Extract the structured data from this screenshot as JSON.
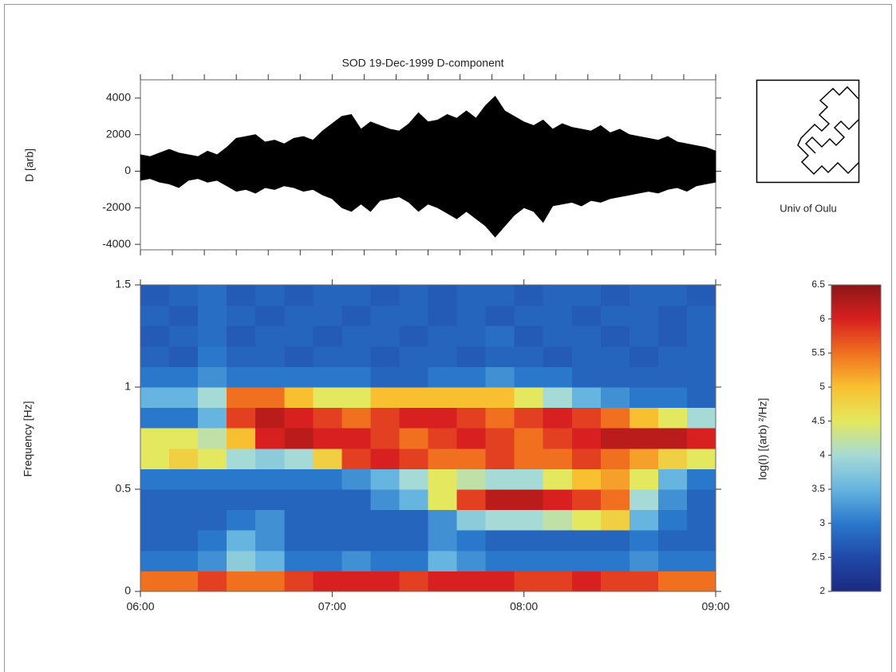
{
  "chart_data": [
    {
      "type": "range",
      "title": "SOD  19-Dec-1999  D-component",
      "ylabel": "D [arb]",
      "x": [
        360,
        363,
        366,
        369,
        372,
        375,
        378,
        381,
        384,
        387,
        390,
        393,
        396,
        399,
        402,
        405,
        408,
        411,
        414,
        417,
        420,
        423,
        426,
        429,
        432,
        435,
        438,
        441,
        444,
        447,
        450,
        453,
        456,
        459,
        462,
        465,
        468,
        471,
        474,
        477,
        480,
        483,
        486,
        489,
        492,
        495,
        498,
        501,
        504,
        507,
        510,
        513,
        516,
        519,
        522,
        525,
        528,
        531,
        534,
        537,
        540
      ],
      "upper": [
        900,
        800,
        1000,
        1200,
        1000,
        900,
        800,
        1100,
        900,
        1300,
        1800,
        1900,
        2000,
        1600,
        1700,
        1500,
        1800,
        1900,
        1700,
        2200,
        2600,
        3000,
        3100,
        2300,
        2700,
        2500,
        2300,
        2200,
        2600,
        3200,
        2700,
        2800,
        3100,
        2900,
        3300,
        2900,
        3600,
        4100,
        3300,
        3000,
        2700,
        2500,
        2800,
        2300,
        2600,
        2400,
        2300,
        2200,
        2500,
        2100,
        2300,
        2000,
        1900,
        1800,
        1700,
        1900,
        1600,
        1500,
        1400,
        1300,
        1100
      ],
      "lower": [
        -500,
        -400,
        -600,
        -700,
        -900,
        -500,
        -400,
        -600,
        -500,
        -800,
        -1100,
        -1000,
        -1200,
        -900,
        -1000,
        -800,
        -900,
        -1100,
        -1000,
        -1300,
        -1500,
        -2000,
        -2200,
        -1800,
        -2200,
        -1600,
        -1500,
        -1400,
        -1700,
        -2200,
        -1800,
        -2000,
        -2300,
        -2600,
        -2200,
        -2600,
        -3000,
        -3600,
        -3000,
        -2400,
        -2000,
        -2200,
        -2800,
        -1900,
        -1800,
        -1700,
        -1900,
        -1600,
        -1700,
        -1500,
        -1400,
        -1300,
        -1200,
        -1100,
        -1200,
        -1000,
        -900,
        -1100,
        -800,
        -700,
        -600
      ],
      "color": "#000000",
      "xlim": [
        360,
        540
      ],
      "xticks": [
        360,
        370,
        380,
        390,
        400,
        410,
        420,
        430,
        440,
        450,
        460,
        470,
        480,
        490,
        500,
        510,
        520,
        530,
        540
      ],
      "ylim": [
        -4300,
        5000
      ],
      "yticks": [
        4000,
        2000,
        0,
        -2000,
        -4000
      ]
    },
    {
      "type": "heatmap",
      "ylabel": "Frequency [Hz]",
      "xbins": [
        360,
        369,
        378,
        387,
        396,
        405,
        414,
        423,
        432,
        441,
        450,
        459,
        468,
        477,
        486,
        495,
        504,
        513,
        522,
        531,
        540
      ],
      "ybins": [
        0,
        0.1,
        0.2,
        0.3,
        0.4,
        0.5,
        0.6,
        0.7,
        0.8,
        0.9,
        1,
        1.1,
        1.2,
        1.3,
        1.4,
        1.5
      ],
      "values": [
        [
          5.5,
          5.5,
          5.8,
          5.5,
          5.5,
          5.8,
          6,
          6,
          6,
          5.8,
          6,
          6,
          6,
          5.8,
          5.8,
          6,
          5.8,
          5.8,
          5.5,
          5.5
        ],
        [
          3,
          3,
          3.2,
          3.8,
          3.5,
          3,
          3,
          3.2,
          3,
          3,
          3.5,
          3.2,
          3,
          3,
          3,
          3,
          3,
          3.2,
          3,
          3
        ],
        [
          2.8,
          2.8,
          3,
          3.5,
          3.2,
          2.8,
          2.8,
          2.8,
          2.8,
          2.8,
          3.2,
          3,
          2.8,
          2.8,
          2.8,
          2.8,
          2.8,
          3,
          2.8,
          2.8
        ],
        [
          2.8,
          2.8,
          2.8,
          3,
          3.2,
          2.8,
          2.8,
          2.8,
          2.8,
          2.8,
          3.2,
          3.8,
          4,
          4,
          4.2,
          4.5,
          4.8,
          3.5,
          3,
          2.8
        ],
        [
          2.8,
          2.8,
          2.8,
          2.8,
          2.8,
          2.8,
          2.8,
          2.8,
          3.2,
          3.5,
          4.5,
          5.8,
          6.2,
          6.2,
          6,
          5.8,
          5.5,
          4,
          3.2,
          2.8
        ],
        [
          3,
          3,
          3,
          3,
          3,
          3,
          3,
          3.2,
          3.5,
          4,
          4.5,
          4.2,
          4,
          4,
          4.5,
          5,
          5.2,
          4.5,
          3.5,
          3
        ],
        [
          4.5,
          4.8,
          4.5,
          4,
          3.8,
          4,
          4.8,
          5.8,
          6,
          5.8,
          5.5,
          5.5,
          5.8,
          5.5,
          5.5,
          5.8,
          5.5,
          5.2,
          4.8,
          4.5
        ],
        [
          4.5,
          4.5,
          4.2,
          5,
          6,
          6.2,
          6,
          6,
          5.8,
          5.5,
          5.8,
          6,
          5.8,
          5.5,
          5.8,
          6,
          6.2,
          6.2,
          6.2,
          6
        ],
        [
          3,
          3,
          3.5,
          5.8,
          6.2,
          6,
          5.8,
          5.5,
          5.8,
          6,
          6,
          5.8,
          5.5,
          5.8,
          6,
          5.8,
          5.5,
          5,
          4.5,
          4
        ],
        [
          3.5,
          3.5,
          4,
          5.5,
          5.5,
          5,
          4.5,
          4.5,
          5,
          5,
          5,
          5,
          5,
          4.5,
          4,
          3.5,
          3.2,
          3,
          3,
          2.8
        ],
        [
          3,
          3,
          3.2,
          3,
          3,
          3,
          3,
          3,
          2.8,
          2.8,
          3,
          3,
          3.2,
          3,
          3,
          2.8,
          2.8,
          2.8,
          2.8,
          2.8
        ],
        [
          2.8,
          2.7,
          3,
          2.8,
          2.8,
          2.7,
          2.8,
          2.8,
          2.7,
          2.8,
          2.8,
          2.7,
          2.8,
          2.8,
          2.7,
          2.8,
          2.8,
          2.7,
          2.8,
          2.8
        ],
        [
          2.7,
          2.8,
          2.9,
          2.7,
          2.8,
          2.8,
          2.7,
          2.8,
          2.8,
          2.7,
          2.8,
          2.8,
          2.9,
          2.7,
          2.8,
          2.8,
          2.7,
          2.8,
          2.7,
          2.8
        ],
        [
          2.8,
          2.7,
          2.9,
          2.8,
          2.7,
          2.8,
          2.8,
          2.7,
          2.8,
          2.8,
          2.7,
          2.8,
          2.7,
          2.8,
          2.8,
          2.7,
          2.8,
          2.8,
          2.7,
          2.8
        ],
        [
          2.7,
          2.8,
          2.9,
          2.7,
          2.8,
          2.7,
          2.8,
          2.8,
          2.7,
          2.8,
          2.7,
          2.8,
          2.8,
          2.7,
          2.8,
          2.8,
          2.7,
          2.8,
          2.8,
          2.7
        ]
      ],
      "xlim": [
        360,
        540
      ],
      "xticks": [
        {
          "value": 360,
          "label": "06:00"
        },
        {
          "value": 420,
          "label": "07:00"
        },
        {
          "value": 480,
          "label": "08:00"
        },
        {
          "value": 540,
          "label": "09:00"
        }
      ],
      "ylim": [
        0,
        1.5
      ],
      "yticks": [
        0,
        0.5,
        1,
        1.5
      ],
      "colorbar": {
        "label": "log(I) [(arb) ²/Hz]",
        "lim": [
          2,
          6.5
        ],
        "ticks": [
          2,
          2.5,
          3,
          3.5,
          4,
          4.5,
          5,
          5.5,
          6,
          6.5
        ],
        "colors": [
          "#1c2a80",
          "#2048a8",
          "#2a78cc",
          "#66b4e0",
          "#a6dad6",
          "#e4e85e",
          "#f8c030",
          "#f07020",
          "#d82020",
          "#8c1616"
        ]
      }
    }
  ],
  "logo_text": "Univ of Oulu"
}
